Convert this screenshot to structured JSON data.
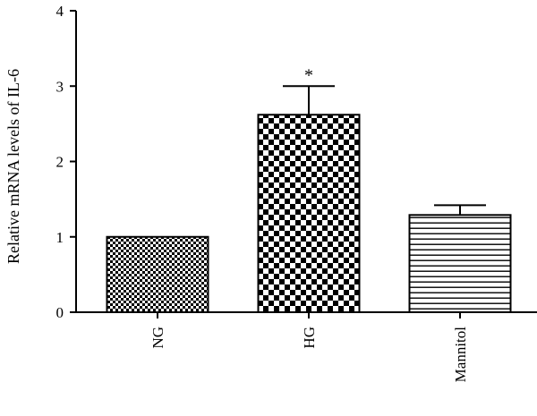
{
  "chart_data": {
    "type": "bar",
    "categories": [
      "NG",
      "HG",
      "Mannitol"
    ],
    "values": [
      1.0,
      2.62,
      1.29
    ],
    "error": [
      0.0,
      0.38,
      0.13
    ],
    "annotations": [
      "",
      "*",
      ""
    ],
    "patterns": [
      "fine-check",
      "coarse-check",
      "horizontal-lines"
    ],
    "title": "",
    "xlabel": "",
    "ylabel": "Relative mRNA levels of IL-6",
    "ylim": [
      0,
      4
    ],
    "yticks": [
      0,
      1,
      2,
      3,
      4
    ],
    "grid": false,
    "colors": {
      "bar_ink": "#000000",
      "bar_fill": "#ffffff",
      "axis": "#000000"
    }
  }
}
